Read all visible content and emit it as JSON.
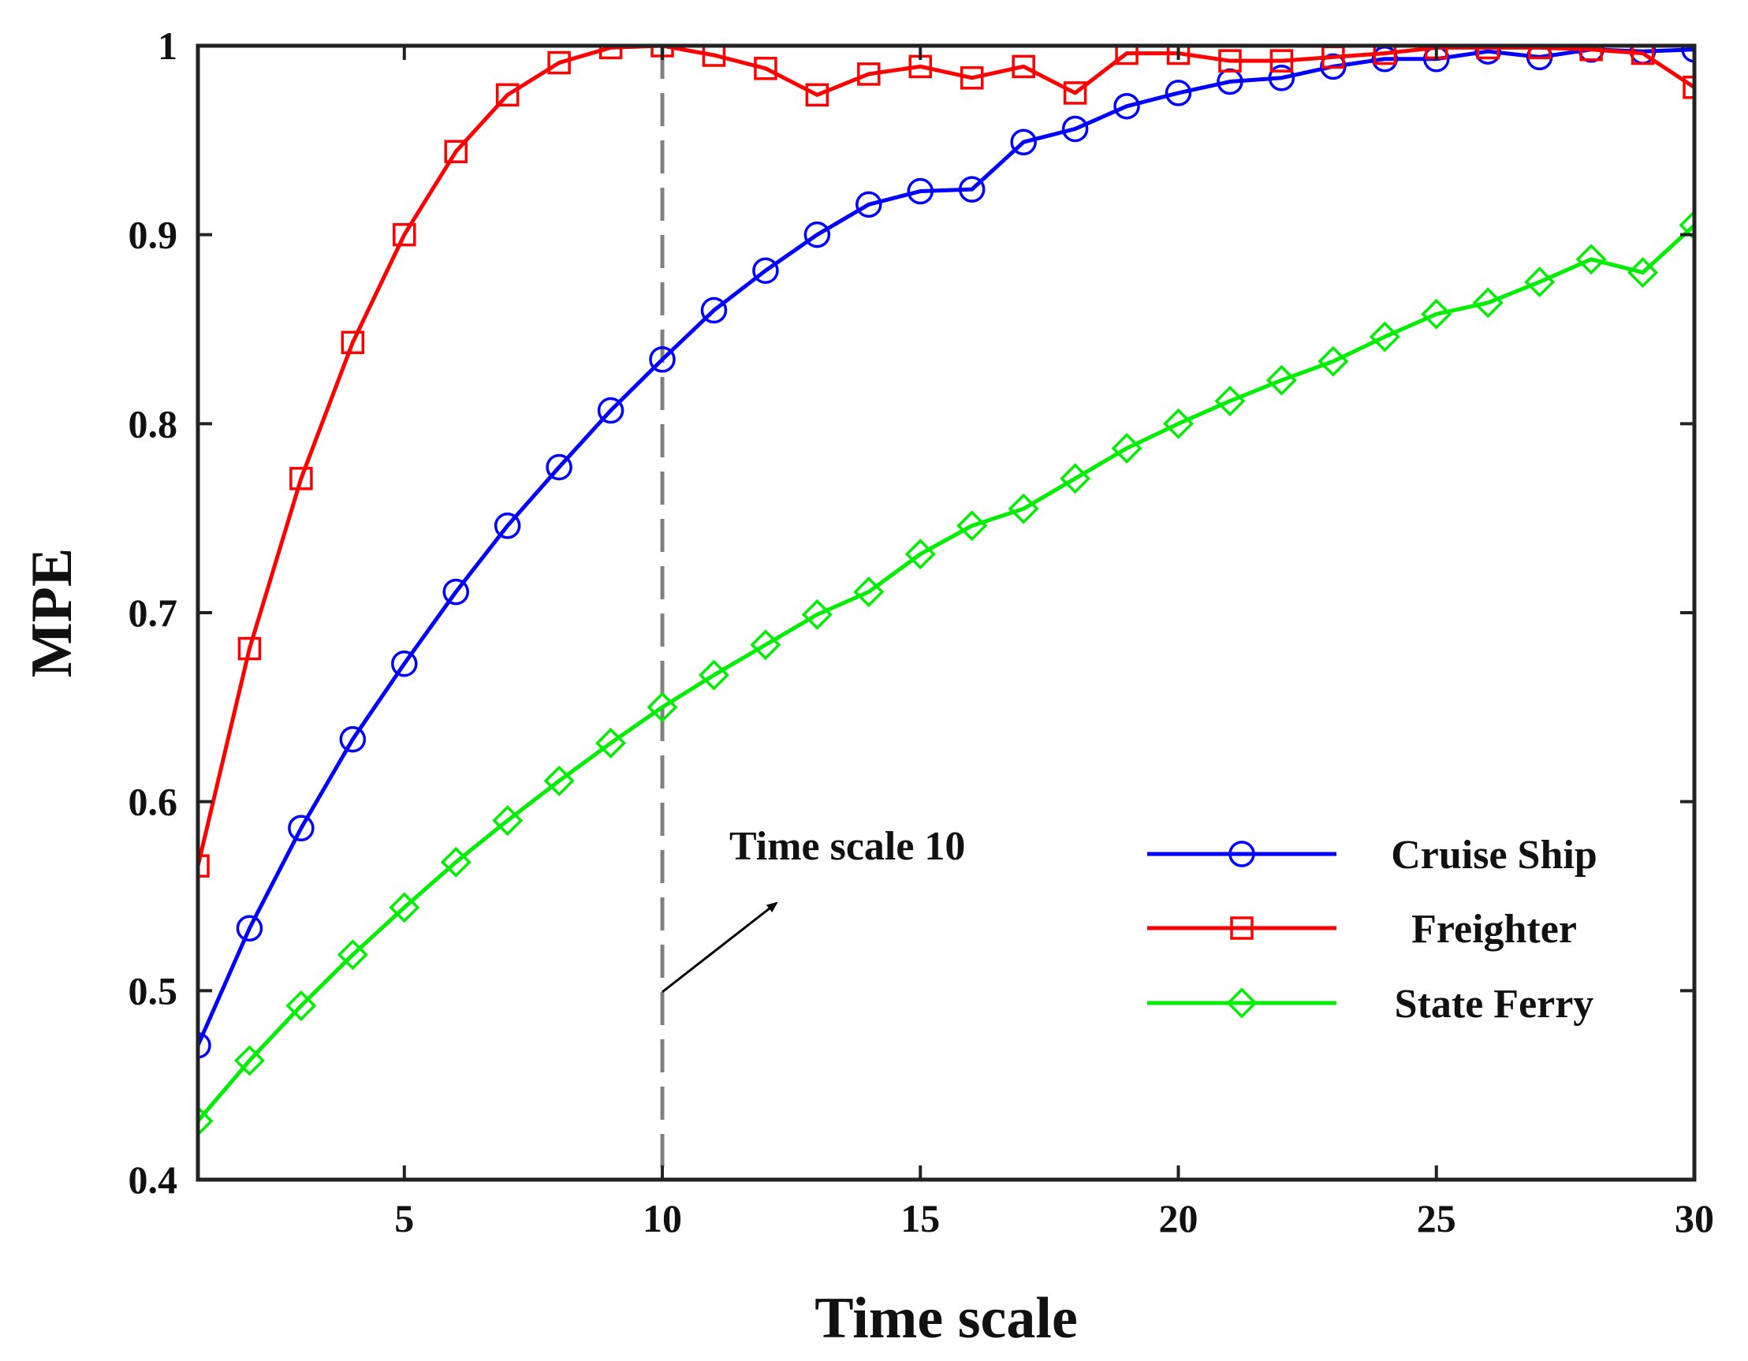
{
  "chart_data": {
    "type": "line",
    "title": "",
    "xlabel": "Time scale",
    "ylabel": "MPE",
    "xlim": [
      1,
      30
    ],
    "ylim": [
      0.4,
      1.0
    ],
    "xticks": [
      5,
      10,
      15,
      20,
      25,
      30
    ],
    "xtick_labels": [
      "5",
      "10",
      "15",
      "20",
      "25",
      "30"
    ],
    "yticks": [
      0.4,
      0.5,
      0.6,
      0.7,
      0.8,
      0.9,
      1.0
    ],
    "ytick_labels": [
      "0.4",
      "0.5",
      "0.6",
      "0.7",
      "0.8",
      "0.9",
      "1"
    ],
    "grid": false,
    "legend_position": "lower-right",
    "x": [
      1,
      2,
      3,
      4,
      5,
      6,
      7,
      8,
      9,
      10,
      11,
      12,
      13,
      14,
      15,
      16,
      17,
      18,
      19,
      20,
      21,
      22,
      23,
      24,
      25,
      26,
      27,
      28,
      29,
      30
    ],
    "series": [
      {
        "name": "Cruise Ship",
        "color": "#0000ff",
        "marker": "circle",
        "values": [
          0.471,
          0.533,
          0.586,
          0.633,
          0.673,
          0.711,
          0.746,
          0.777,
          0.807,
          0.834,
          0.86,
          0.881,
          0.9,
          0.916,
          0.923,
          0.924,
          0.949,
          0.956,
          0.968,
          0.975,
          0.981,
          0.983,
          0.989,
          0.993,
          0.993,
          0.997,
          0.994,
          0.998,
          0.997,
          0.998
        ]
      },
      {
        "name": "Freighter",
        "color": "#ff0000",
        "marker": "square",
        "values": [
          0.566,
          0.681,
          0.771,
          0.843,
          0.9,
          0.944,
          0.974,
          0.991,
          0.999,
          1.0,
          0.995,
          0.988,
          0.974,
          0.985,
          0.989,
          0.983,
          0.989,
          0.975,
          0.996,
          0.996,
          0.992,
          0.992,
          0.994,
          0.996,
          0.999,
          0.999,
          0.999,
          0.998,
          0.996,
          0.978
        ]
      },
      {
        "name": "State Ferry",
        "color": "#00ee00",
        "marker": "diamond",
        "values": [
          0.431,
          0.463,
          0.492,
          0.519,
          0.544,
          0.568,
          0.59,
          0.611,
          0.631,
          0.65,
          0.667,
          0.683,
          0.699,
          0.711,
          0.731,
          0.746,
          0.755,
          0.771,
          0.787,
          0.8,
          0.812,
          0.823,
          0.833,
          0.846,
          0.858,
          0.864,
          0.875,
          0.887,
          0.88,
          0.905
        ]
      }
    ],
    "vline": {
      "x": 10,
      "color": "#808080",
      "style": "dashed"
    },
    "annotations": [
      {
        "text": "Time scale 10",
        "points_to_x": 10
      }
    ]
  }
}
